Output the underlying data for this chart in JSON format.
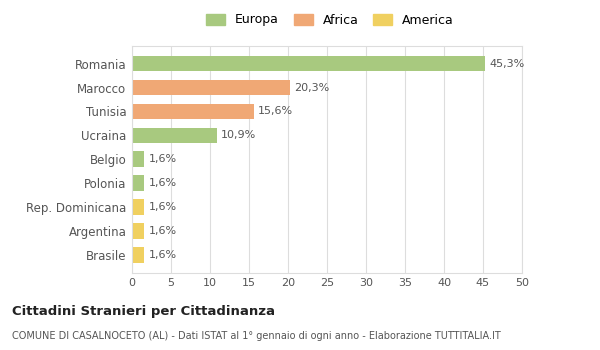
{
  "categories": [
    "Romania",
    "Marocco",
    "Tunisia",
    "Ucraina",
    "Belgio",
    "Polonia",
    "Rep. Dominicana",
    "Argentina",
    "Brasile"
  ],
  "values": [
    45.3,
    20.3,
    15.6,
    10.9,
    1.6,
    1.6,
    1.6,
    1.6,
    1.6
  ],
  "labels": [
    "45,3%",
    "20,3%",
    "15,6%",
    "10,9%",
    "1,6%",
    "1,6%",
    "1,6%",
    "1,6%",
    "1,6%"
  ],
  "colors": [
    "#a8c97f",
    "#f0a875",
    "#f0a875",
    "#a8c97f",
    "#a8c97f",
    "#a8c97f",
    "#f0d060",
    "#f0d060",
    "#f0d060"
  ],
  "legend_labels": [
    "Europa",
    "Africa",
    "America"
  ],
  "legend_colors": [
    "#a8c97f",
    "#f0a875",
    "#f0d060"
  ],
  "title": "Cittadini Stranieri per Cittadinanza",
  "subtitle": "COMUNE DI CASALNOCETO (AL) - Dati ISTAT al 1° gennaio di ogni anno - Elaborazione TUTTITALIA.IT",
  "xlim": [
    0,
    50
  ],
  "xticks": [
    0,
    5,
    10,
    15,
    20,
    25,
    30,
    35,
    40,
    45,
    50
  ],
  "bg_color": "#ffffff",
  "grid_color": "#dddddd",
  "bar_height": 0.65
}
